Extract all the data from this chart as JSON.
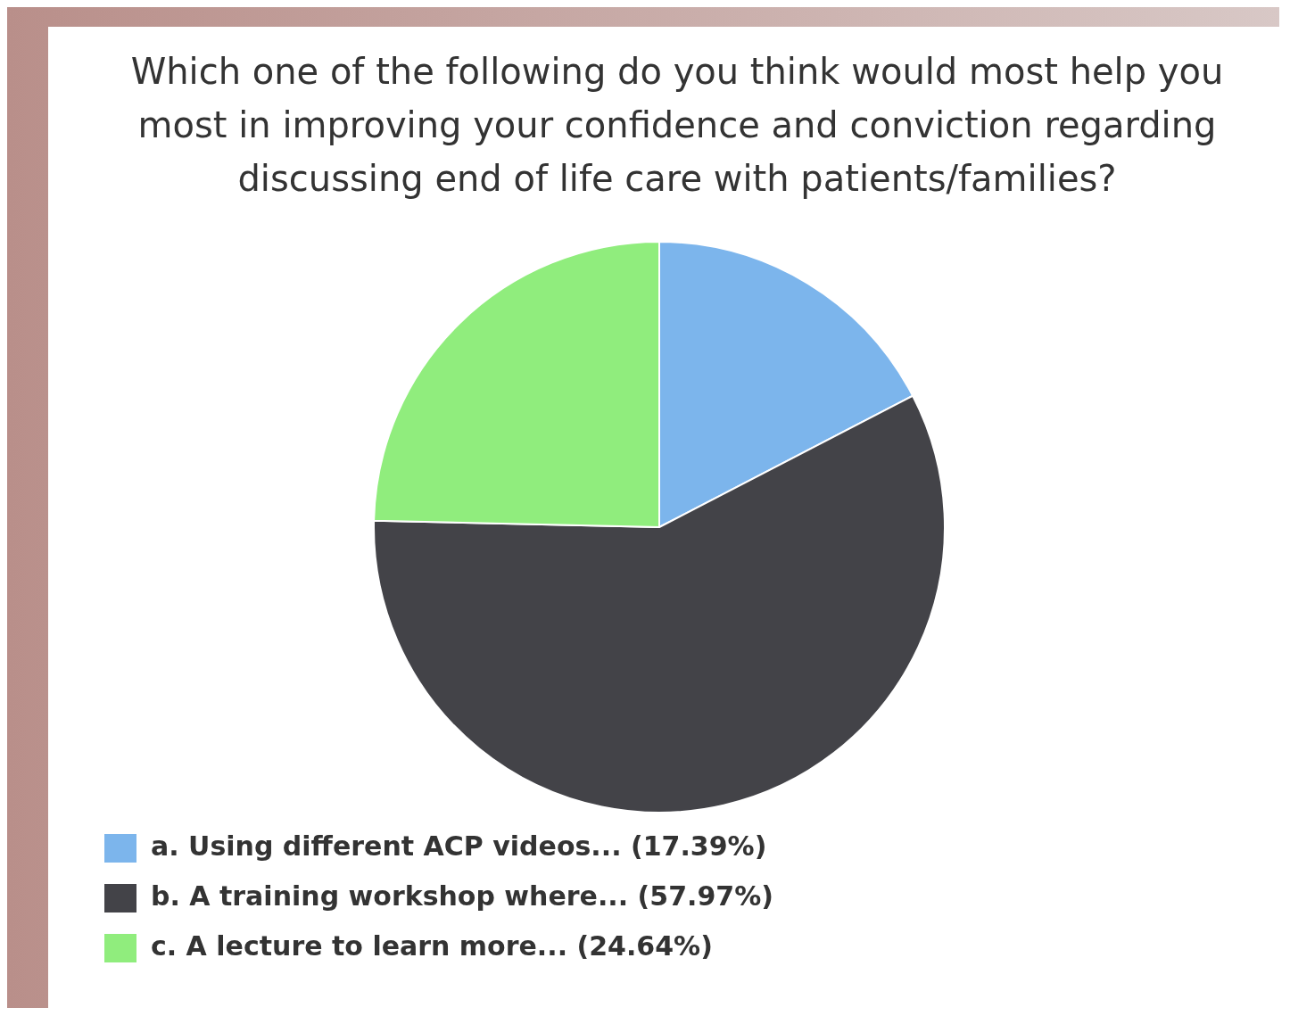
{
  "chart_data": {
    "type": "pie",
    "title": "Which one of the following do you think would most help you most in improving your confidence and conviction regarding discussing end of life care with patients/families?",
    "categories": [
      "a. Using different ACP videos... (17.39%)",
      "b. A training workshop where... (57.97%)",
      "c. A lecture to learn more... (24.64%)"
    ],
    "values": [
      17.39,
      57.97,
      24.64
    ],
    "colors": [
      "#7cb5ec",
      "#434348",
      "#90ed7d"
    ],
    "legend": "bottom"
  }
}
